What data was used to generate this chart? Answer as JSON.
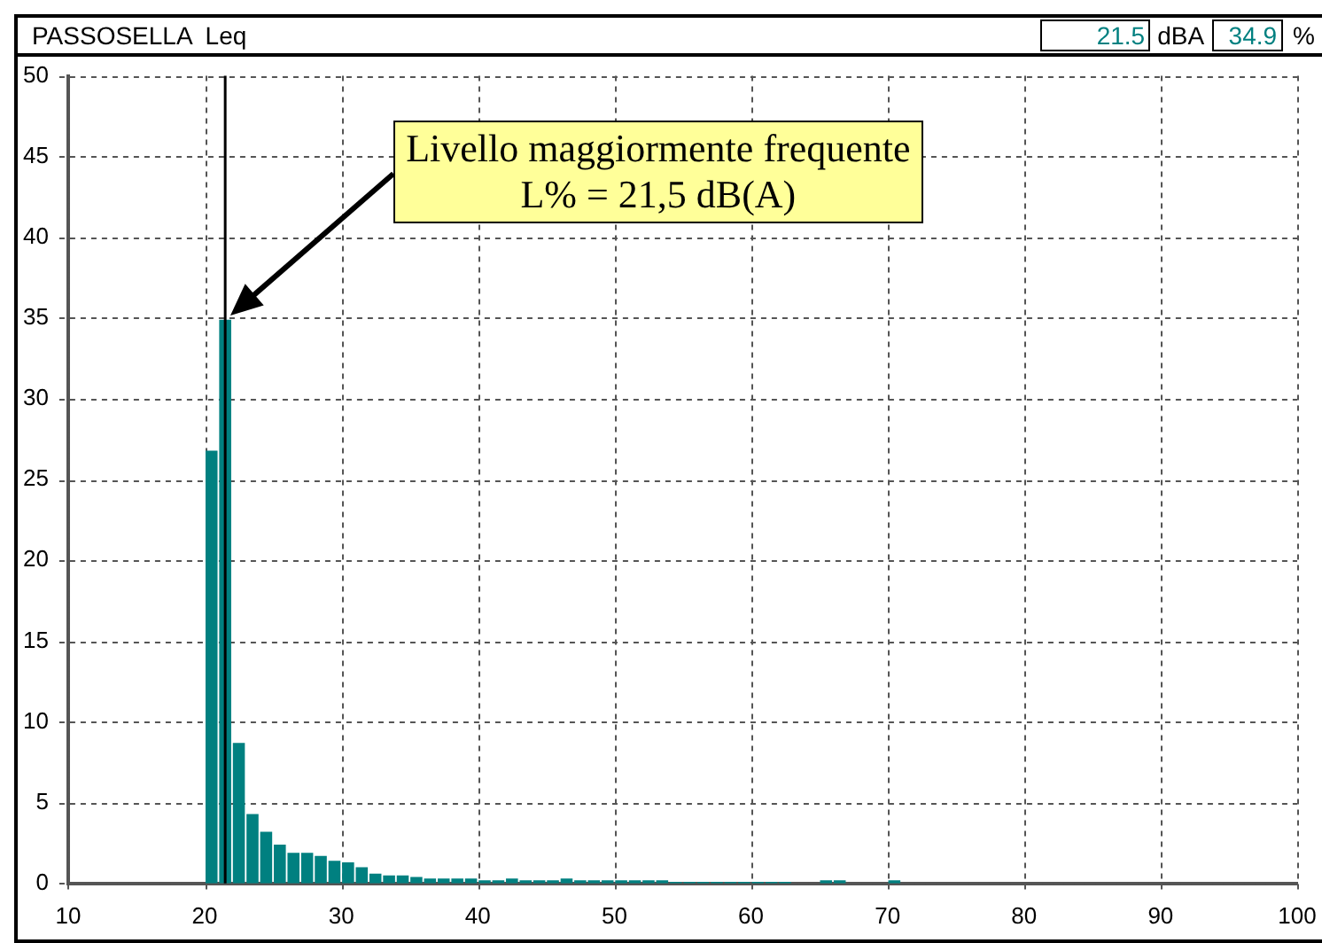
{
  "chart_data": {
    "type": "histogram",
    "title": "PASSOSELLA  Leq",
    "bins": [
      20,
      21,
      22,
      23,
      24,
      25,
      26,
      27,
      28,
      29,
      30,
      31,
      32,
      33,
      34,
      35,
      36,
      37,
      38,
      39,
      40,
      41,
      42,
      43,
      44,
      45,
      46,
      47,
      48,
      49,
      50,
      51,
      52,
      53,
      54,
      55,
      56,
      57,
      58,
      59,
      60,
      61,
      62,
      63,
      64,
      65,
      66,
      67,
      68,
      69,
      70,
      71
    ],
    "values": [
      26.8,
      34.9,
      8.7,
      4.3,
      3.2,
      2.4,
      1.9,
      1.9,
      1.7,
      1.4,
      1.3,
      1.0,
      0.6,
      0.5,
      0.5,
      0.4,
      0.3,
      0.3,
      0.3,
      0.3,
      0.2,
      0.2,
      0.3,
      0.2,
      0.2,
      0.2,
      0.3,
      0.2,
      0.2,
      0.2,
      0.2,
      0.2,
      0.2,
      0.2,
      0.1,
      0.1,
      0.1,
      0.1,
      0.1,
      0.1,
      0.1,
      0.1,
      0.1,
      0,
      0,
      0.2,
      0.2,
      0,
      0,
      0,
      0.2
    ],
    "color": "#008080",
    "xlim": [
      10,
      100
    ],
    "xticks": [
      10,
      20,
      30,
      40,
      50,
      60,
      70,
      80,
      90,
      100
    ],
    "ylim": [
      0,
      50
    ],
    "yticks": [
      0,
      5,
      10,
      15,
      20,
      25,
      30,
      35,
      40,
      45,
      50
    ],
    "grid": true,
    "legend": false,
    "ref_lines": [
      {
        "axis": "x",
        "value": 21.5,
        "color": "#000000"
      }
    ],
    "annotations": [
      "21.5",
      "dBA",
      "34.9",
      "%",
      "Livello maggiormente frequente\nL% = 21,5 dB(A)"
    ]
  }
}
